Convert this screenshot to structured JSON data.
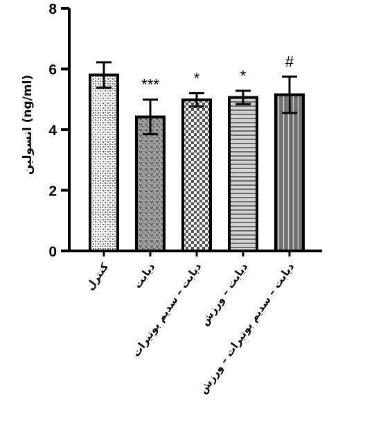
{
  "chart_data": {
    "type": "bar",
    "ylabel": "انسولین (ng/ml)",
    "ylim": [
      0,
      8
    ],
    "yticks": [
      "0",
      "2",
      "4",
      "6",
      "8"
    ],
    "categories": [
      "کنترل",
      "دیابت",
      "دیابت – سدیم بوتیرات",
      "دیابت – ورزش",
      "دیابت – سدیم بوتیرات – ورزش"
    ],
    "values": [
      5.8,
      4.42,
      4.98,
      5.06,
      5.15
    ],
    "errors": [
      0.42,
      0.57,
      0.22,
      0.22,
      0.6
    ],
    "significance": [
      "",
      "***",
      "*",
      "*",
      "#"
    ],
    "patterns": [
      "brick-dots",
      "dark-wave",
      "checker",
      "horizontal-lines",
      "vertical-lines"
    ]
  }
}
